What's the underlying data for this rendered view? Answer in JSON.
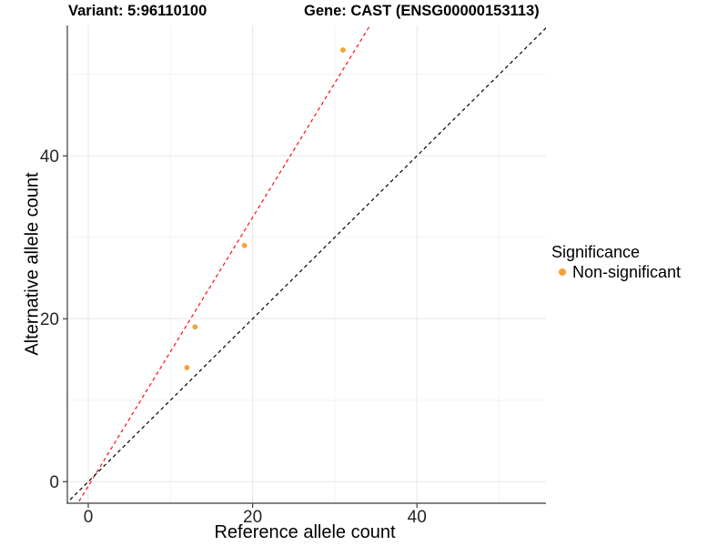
{
  "chart_data": {
    "type": "scatter",
    "title_left": "Variant: 5:96110100",
    "title_right": "Gene: CAST (ENSG00000153113)",
    "xlabel": "Reference allele count",
    "ylabel": "Alternative allele count",
    "x_ticks": [
      0,
      20,
      40
    ],
    "y_ticks": [
      0,
      20,
      40
    ],
    "x_minor_grid": [
      10,
      30,
      50
    ],
    "y_minor_grid": [
      10,
      30,
      50
    ],
    "xlim": [
      -2.6,
      55.7
    ],
    "ylim": [
      -2.7,
      56.0
    ],
    "grid": true,
    "legend_position": "right",
    "points": [
      {
        "x": 12,
        "y": 14
      },
      {
        "x": 13,
        "y": 19
      },
      {
        "x": 19,
        "y": 29
      },
      {
        "x": 31,
        "y": 53
      }
    ],
    "point_series": "Non-significant",
    "point_color": "#F7A233",
    "lines": [
      {
        "name": "fitted-line",
        "slope": 1.65,
        "intercept": -0.55,
        "color": "#FF0D0D",
        "style": "dashed"
      },
      {
        "name": "identity-line",
        "slope": 1.0,
        "intercept": 0.0,
        "color": "#000000",
        "style": "dashed"
      }
    ]
  },
  "legend": {
    "title": "Significance",
    "items": [
      {
        "label": "Non-significant",
        "color": "#F7A233"
      }
    ]
  },
  "style_colors": {
    "grid_major": "#E7E7E7",
    "grid_minor": "#F3F3F3",
    "axis_line": "#3B3B3B",
    "tick_label": "#262626"
  }
}
